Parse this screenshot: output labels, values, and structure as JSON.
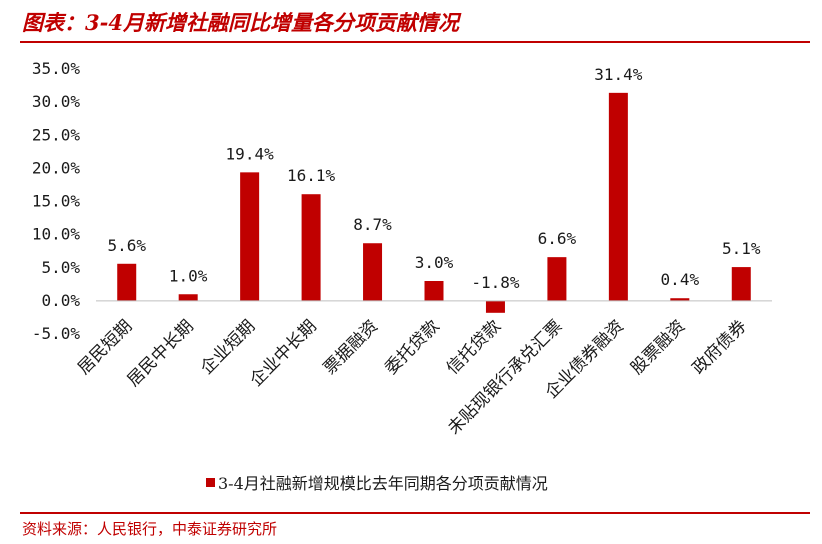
{
  "header": {
    "title": "图表：3-4月新增社融同比增量各分项贡献情况"
  },
  "footer": {
    "source": "资料来源：人民银行，中泰证券研究所"
  },
  "colors": {
    "accent": "#c00000",
    "bar": "#c00000"
  },
  "chart_data": {
    "type": "bar",
    "title": "",
    "xlabel": "",
    "ylabel": "",
    "ylim": [
      -5.0,
      35.0
    ],
    "ytick_step": 5.0,
    "ytick_labels": [
      "-5.0%",
      "0.0%",
      "5.0%",
      "10.0%",
      "15.0%",
      "20.0%",
      "25.0%",
      "30.0%",
      "35.0%"
    ],
    "grid": false,
    "legend_position": "bottom",
    "categories": [
      "居民短期",
      "居民中长期",
      "企业短期",
      "企业中长期",
      "票据融资",
      "委托贷款",
      "信托贷款",
      "未贴现银行承兑汇票",
      "企业债券融资",
      "股票融资",
      "政府债券"
    ],
    "series": [
      {
        "name": "3-4月社融新增规模比去年同期各分项贡献情况",
        "values": [
          5.6,
          1.0,
          19.4,
          16.1,
          8.7,
          3.0,
          -1.8,
          6.6,
          31.4,
          0.4,
          5.1
        ],
        "value_labels": [
          "5.6%",
          "1.0%",
          "19.4%",
          "16.1%",
          "8.7%",
          "3.0%",
          "-1.8%",
          "6.6%",
          "31.4%",
          "0.4%",
          "5.1%"
        ]
      }
    ]
  }
}
